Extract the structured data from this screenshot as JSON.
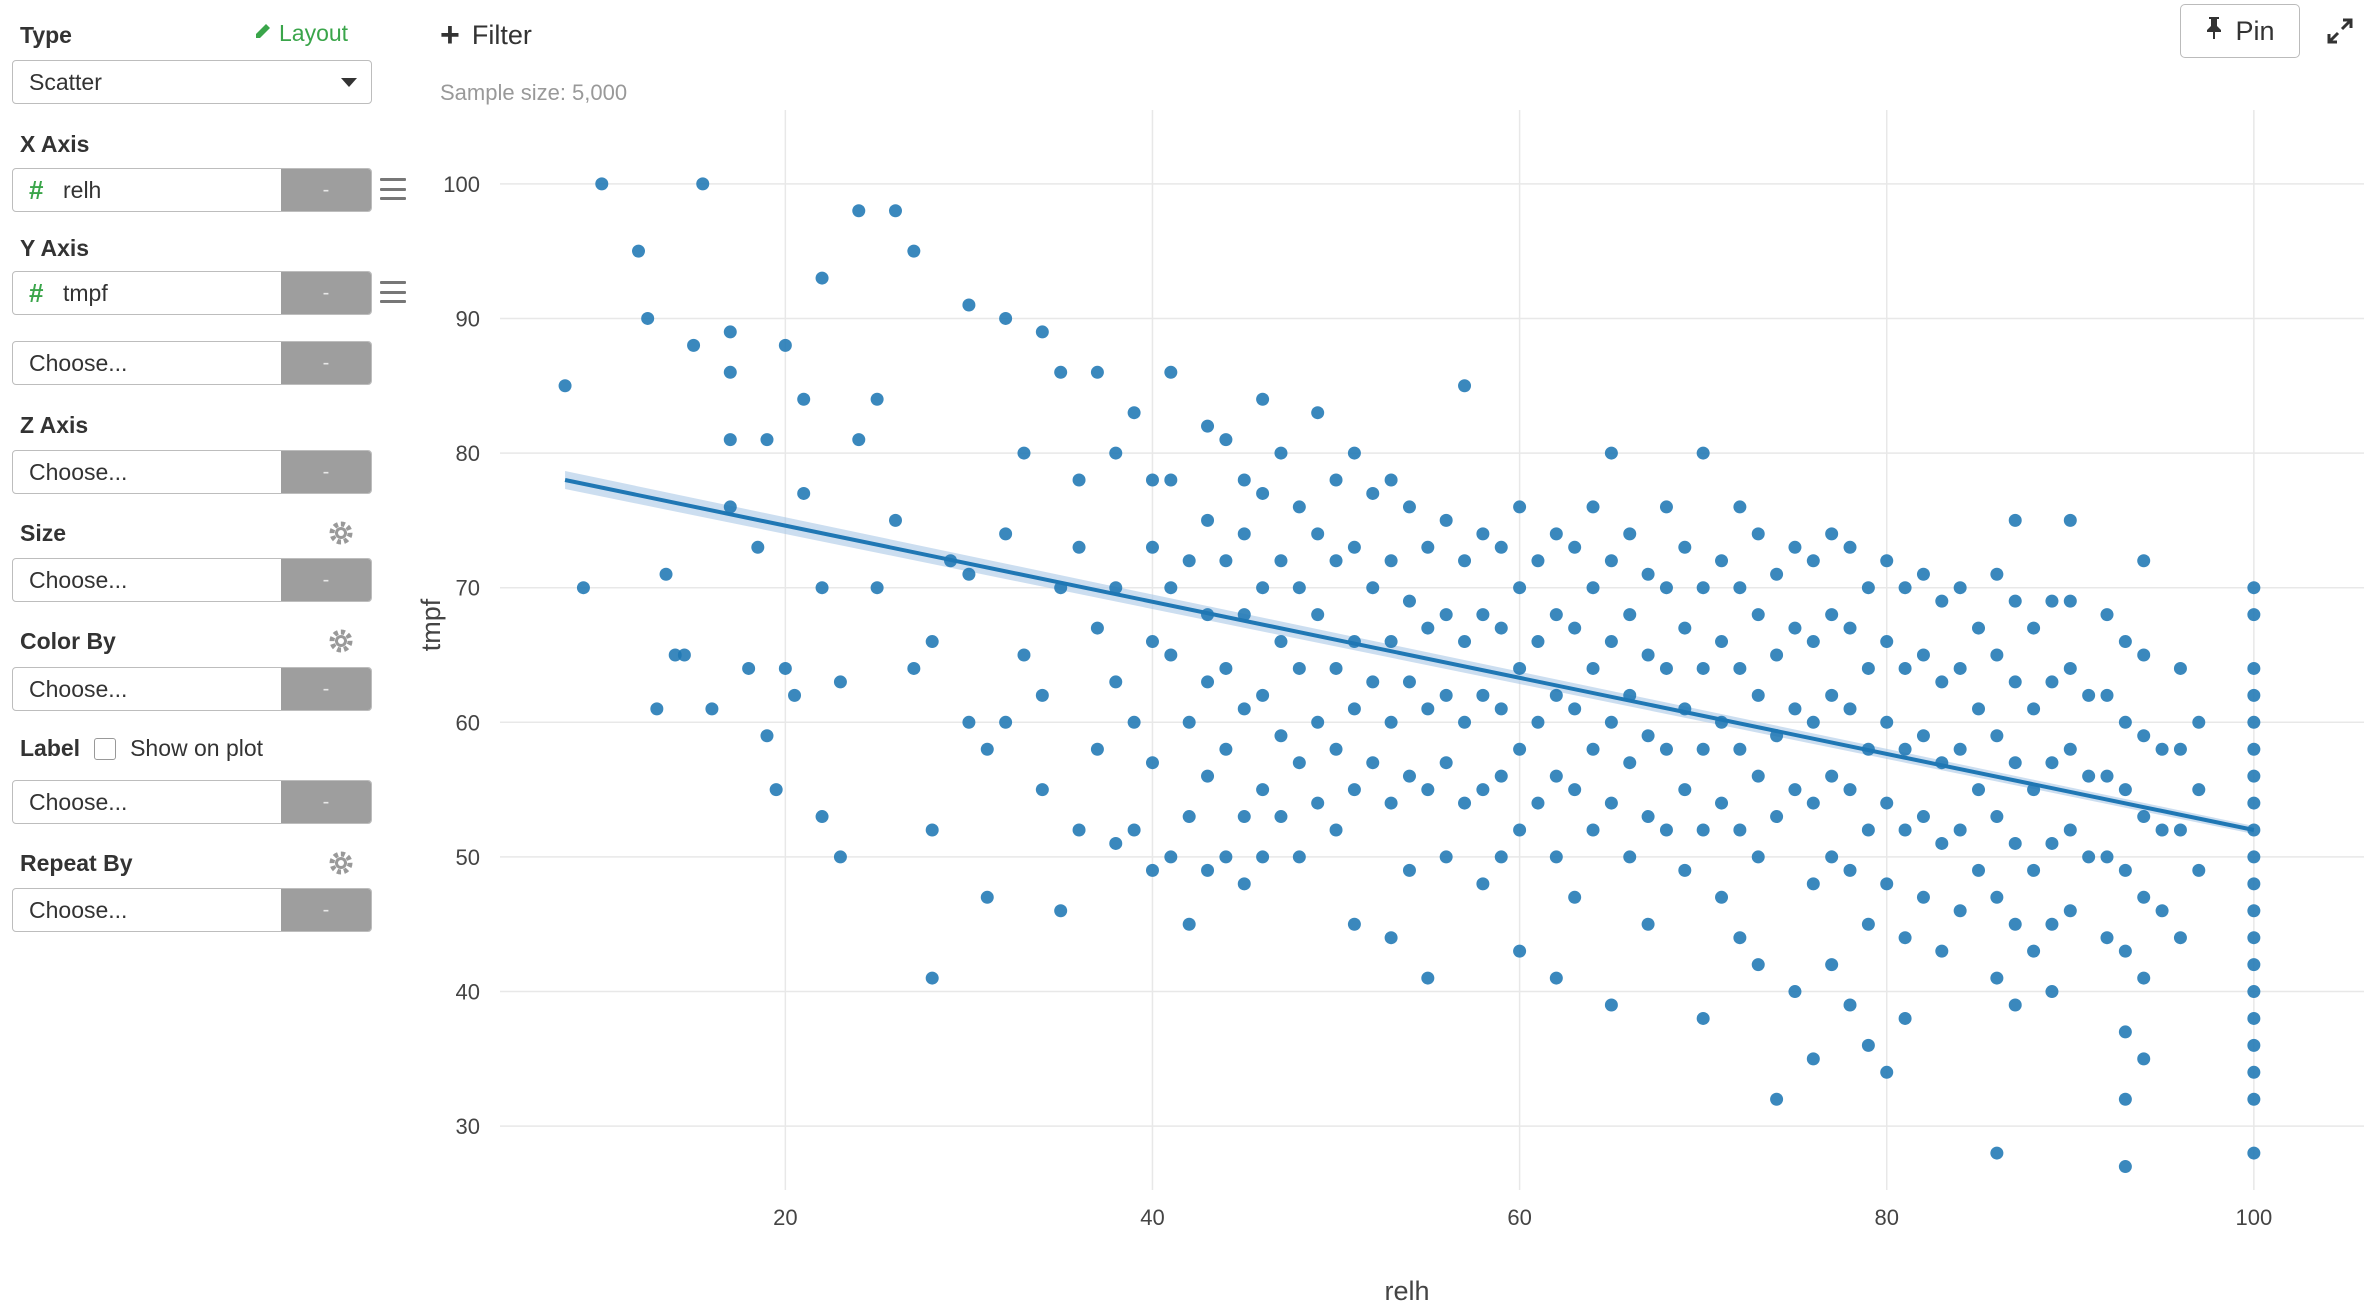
{
  "sidebar": {
    "type_label": "Type",
    "layout_link": "Layout",
    "chart_type_value": "Scatter",
    "x_axis_label": "X Axis",
    "x_axis_value": "relh",
    "y_axis_label": "Y Axis",
    "y_axis_value": "tmpf",
    "y_axis_extra_value": "Choose...",
    "z_axis_label": "Z Axis",
    "z_axis_value": "Choose...",
    "size_label": "Size",
    "size_value": "Choose...",
    "color_by_label": "Color By",
    "color_by_value": "Choose...",
    "label_label": "Label",
    "show_on_plot": "Show on plot",
    "label_value": "Choose...",
    "repeat_by_label": "Repeat By",
    "repeat_by_value": "Choose...",
    "remove_glyph": "-",
    "hash_glyph": "#"
  },
  "toolbar": {
    "filter_label": "Filter",
    "sample_size": "Sample size: 5,000",
    "pin_label": "Pin"
  },
  "colors": {
    "point": "#1f77b4",
    "accent_green": "#3aa54a",
    "grid": "#e8e8e8",
    "button_gray": "#9e9e9e"
  },
  "icons": [
    "pencil-icon",
    "caret-down-icon",
    "hash-icon",
    "menu-icon",
    "gear-icon",
    "plus-icon",
    "pin-icon",
    "expand-icon"
  ],
  "chart_data": {
    "type": "scatter",
    "xlabel": "relh",
    "ylabel": "tmpf",
    "xlim": [
      5,
      106
    ],
    "ylim": [
      26,
      104
    ],
    "xticks": [
      20,
      40,
      60,
      80,
      100
    ],
    "yticks": [
      30,
      40,
      50,
      60,
      70,
      80,
      90,
      100
    ],
    "grid": true,
    "point_color": "#1f77b4",
    "trend_line": {
      "x": [
        8,
        100
      ],
      "y": [
        78,
        52
      ]
    },
    "points": [
      [
        8,
        85
      ],
      [
        9,
        70
      ],
      [
        10,
        100
      ],
      [
        12,
        95
      ],
      [
        12.5,
        90
      ],
      [
        13,
        61
      ],
      [
        13.5,
        71
      ],
      [
        14,
        65
      ],
      [
        14.5,
        65
      ],
      [
        15,
        88
      ],
      [
        15.5,
        100
      ],
      [
        16,
        61
      ],
      [
        17,
        89
      ],
      [
        17,
        86
      ],
      [
        17,
        81
      ],
      [
        17,
        76
      ],
      [
        18,
        64
      ],
      [
        18.5,
        73
      ],
      [
        19,
        59
      ],
      [
        19,
        81
      ],
      [
        19.5,
        55
      ],
      [
        20,
        88
      ],
      [
        20,
        64
      ],
      [
        20.5,
        62
      ],
      [
        21,
        84
      ],
      [
        21,
        77
      ],
      [
        22,
        70
      ],
      [
        22,
        93
      ],
      [
        22,
        53
      ],
      [
        23,
        63
      ],
      [
        23,
        50
      ],
      [
        24,
        98
      ],
      [
        24,
        81
      ],
      [
        25,
        84
      ],
      [
        25,
        70
      ],
      [
        26,
        98
      ],
      [
        26,
        75
      ],
      [
        27,
        64
      ],
      [
        27,
        95
      ],
      [
        28,
        66
      ],
      [
        28,
        41
      ],
      [
        28,
        52
      ],
      [
        29,
        72
      ],
      [
        30,
        71
      ],
      [
        30,
        60
      ],
      [
        30,
        91
      ],
      [
        31,
        58
      ],
      [
        31,
        47
      ],
      [
        32,
        74
      ],
      [
        32,
        60
      ],
      [
        32,
        90
      ],
      [
        33,
        65
      ],
      [
        33,
        80
      ],
      [
        34,
        55
      ],
      [
        34,
        62
      ],
      [
        34,
        89
      ],
      [
        35,
        70
      ],
      [
        35,
        86
      ],
      [
        35,
        46
      ],
      [
        36,
        78
      ],
      [
        36,
        73
      ],
      [
        36,
        52
      ],
      [
        37,
        86
      ],
      [
        37,
        67
      ],
      [
        37,
        58
      ],
      [
        38,
        80
      ],
      [
        38,
        70
      ],
      [
        38,
        63
      ],
      [
        38,
        51
      ],
      [
        39,
        83
      ],
      [
        39,
        60
      ],
      [
        39,
        52
      ],
      [
        40,
        78
      ],
      [
        40,
        73
      ],
      [
        40,
        66
      ],
      [
        40,
        57
      ],
      [
        40,
        49
      ],
      [
        41,
        86
      ],
      [
        41,
        78
      ],
      [
        41,
        70
      ],
      [
        41,
        65
      ],
      [
        41,
        50
      ],
      [
        42,
        72
      ],
      [
        42,
        60
      ],
      [
        42,
        53
      ],
      [
        42,
        45
      ],
      [
        43,
        82
      ],
      [
        43,
        75
      ],
      [
        43,
        68
      ],
      [
        43,
        63
      ],
      [
        43,
        56
      ],
      [
        43,
        49
      ],
      [
        44,
        81
      ],
      [
        44,
        72
      ],
      [
        44,
        64
      ],
      [
        44,
        58
      ],
      [
        44,
        50
      ],
      [
        45,
        78
      ],
      [
        45,
        74
      ],
      [
        45,
        68
      ],
      [
        45,
        61
      ],
      [
        45,
        53
      ],
      [
        45,
        48
      ],
      [
        46,
        84
      ],
      [
        46,
        77
      ],
      [
        46,
        70
      ],
      [
        46,
        62
      ],
      [
        46,
        55
      ],
      [
        46,
        50
      ],
      [
        47,
        80
      ],
      [
        47,
        72
      ],
      [
        47,
        66
      ],
      [
        47,
        59
      ],
      [
        47,
        53
      ],
      [
        48,
        76
      ],
      [
        48,
        70
      ],
      [
        48,
        64
      ],
      [
        48,
        57
      ],
      [
        48,
        50
      ],
      [
        49,
        83
      ],
      [
        49,
        74
      ],
      [
        49,
        68
      ],
      [
        49,
        60
      ],
      [
        49,
        54
      ],
      [
        50,
        78
      ],
      [
        50,
        72
      ],
      [
        50,
        64
      ],
      [
        50,
        58
      ],
      [
        50,
        52
      ],
      [
        51,
        80
      ],
      [
        51,
        73
      ],
      [
        51,
        66
      ],
      [
        51,
        61
      ],
      [
        51,
        55
      ],
      [
        51,
        45
      ],
      [
        52,
        77
      ],
      [
        52,
        70
      ],
      [
        52,
        63
      ],
      [
        52,
        57
      ],
      [
        53,
        78
      ],
      [
        53,
        72
      ],
      [
        53,
        66
      ],
      [
        53,
        60
      ],
      [
        53,
        54
      ],
      [
        53,
        44
      ],
      [
        54,
        76
      ],
      [
        54,
        69
      ],
      [
        54,
        63
      ],
      [
        54,
        56
      ],
      [
        54,
        49
      ],
      [
        55,
        73
      ],
      [
        55,
        67
      ],
      [
        55,
        61
      ],
      [
        55,
        55
      ],
      [
        55,
        41
      ],
      [
        56,
        75
      ],
      [
        56,
        68
      ],
      [
        56,
        62
      ],
      [
        56,
        57
      ],
      [
        56,
        50
      ],
      [
        57,
        72
      ],
      [
        57,
        66
      ],
      [
        57,
        60
      ],
      [
        57,
        54
      ],
      [
        57,
        85
      ],
      [
        58,
        74
      ],
      [
        58,
        68
      ],
      [
        58,
        62
      ],
      [
        58,
        55
      ],
      [
        58,
        48
      ],
      [
        59,
        73
      ],
      [
        59,
        67
      ],
      [
        59,
        61
      ],
      [
        59,
        56
      ],
      [
        59,
        50
      ],
      [
        60,
        76
      ],
      [
        60,
        70
      ],
      [
        60,
        64
      ],
      [
        60,
        58
      ],
      [
        60,
        52
      ],
      [
        60,
        43
      ],
      [
        61,
        72
      ],
      [
        61,
        66
      ],
      [
        61,
        60
      ],
      [
        61,
        54
      ],
      [
        62,
        74
      ],
      [
        62,
        68
      ],
      [
        62,
        62
      ],
      [
        62,
        56
      ],
      [
        62,
        50
      ],
      [
        62,
        41
      ],
      [
        63,
        73
      ],
      [
        63,
        67
      ],
      [
        63,
        61
      ],
      [
        63,
        55
      ],
      [
        63,
        47
      ],
      [
        64,
        76
      ],
      [
        64,
        70
      ],
      [
        64,
        64
      ],
      [
        64,
        58
      ],
      [
        64,
        52
      ],
      [
        65,
        80
      ],
      [
        65,
        72
      ],
      [
        65,
        66
      ],
      [
        65,
        60
      ],
      [
        65,
        54
      ],
      [
        65,
        39
      ],
      [
        66,
        74
      ],
      [
        66,
        68
      ],
      [
        66,
        62
      ],
      [
        66,
        57
      ],
      [
        66,
        50
      ],
      [
        67,
        71
      ],
      [
        67,
        65
      ],
      [
        67,
        59
      ],
      [
        67,
        53
      ],
      [
        67,
        45
      ],
      [
        68,
        76
      ],
      [
        68,
        70
      ],
      [
        68,
        64
      ],
      [
        68,
        58
      ],
      [
        68,
        52
      ],
      [
        69,
        73
      ],
      [
        69,
        67
      ],
      [
        69,
        61
      ],
      [
        69,
        55
      ],
      [
        69,
        49
      ],
      [
        70,
        80
      ],
      [
        70,
        70
      ],
      [
        70,
        64
      ],
      [
        70,
        58
      ],
      [
        70,
        52
      ],
      [
        70,
        38
      ],
      [
        71,
        72
      ],
      [
        71,
        66
      ],
      [
        71,
        60
      ],
      [
        71,
        54
      ],
      [
        71,
        47
      ],
      [
        72,
        76
      ],
      [
        72,
        70
      ],
      [
        72,
        64
      ],
      [
        72,
        58
      ],
      [
        72,
        52
      ],
      [
        72,
        44
      ],
      [
        73,
        74
      ],
      [
        73,
        68
      ],
      [
        73,
        62
      ],
      [
        73,
        56
      ],
      [
        73,
        50
      ],
      [
        73,
        42
      ],
      [
        74,
        71
      ],
      [
        74,
        65
      ],
      [
        74,
        59
      ],
      [
        74,
        53
      ],
      [
        74,
        32
      ],
      [
        75,
        73
      ],
      [
        75,
        67
      ],
      [
        75,
        61
      ],
      [
        75,
        55
      ],
      [
        75,
        40
      ],
      [
        76,
        72
      ],
      [
        76,
        66
      ],
      [
        76,
        60
      ],
      [
        76,
        54
      ],
      [
        76,
        48
      ],
      [
        76,
        35
      ],
      [
        77,
        74
      ],
      [
        77,
        68
      ],
      [
        77,
        62
      ],
      [
        77,
        56
      ],
      [
        77,
        50
      ],
      [
        77,
        42
      ],
      [
        78,
        73
      ],
      [
        78,
        67
      ],
      [
        78,
        61
      ],
      [
        78,
        55
      ],
      [
        78,
        49
      ],
      [
        78,
        39
      ],
      [
        79,
        70
      ],
      [
        79,
        64
      ],
      [
        79,
        58
      ],
      [
        79,
        52
      ],
      [
        79,
        45
      ],
      [
        79,
        36
      ],
      [
        80,
        72
      ],
      [
        80,
        66
      ],
      [
        80,
        60
      ],
      [
        80,
        54
      ],
      [
        80,
        48
      ],
      [
        80,
        34
      ],
      [
        81,
        70
      ],
      [
        81,
        64
      ],
      [
        81,
        58
      ],
      [
        81,
        52
      ],
      [
        81,
        44
      ],
      [
        81,
        38
      ],
      [
        82,
        71
      ],
      [
        82,
        65
      ],
      [
        82,
        59
      ],
      [
        82,
        53
      ],
      [
        82,
        47
      ],
      [
        83,
        69
      ],
      [
        83,
        63
      ],
      [
        83,
        57
      ],
      [
        83,
        51
      ],
      [
        83,
        43
      ],
      [
        84,
        70
      ],
      [
        84,
        64
      ],
      [
        84,
        58
      ],
      [
        84,
        52
      ],
      [
        84,
        46
      ],
      [
        85,
        67
      ],
      [
        85,
        61
      ],
      [
        85,
        55
      ],
      [
        85,
        49
      ],
      [
        86,
        71
      ],
      [
        86,
        65
      ],
      [
        86,
        59
      ],
      [
        86,
        53
      ],
      [
        86,
        47
      ],
      [
        86,
        41
      ],
      [
        86,
        28
      ],
      [
        87,
        75
      ],
      [
        87,
        69
      ],
      [
        87,
        63
      ],
      [
        87,
        57
      ],
      [
        87,
        51
      ],
      [
        87,
        45
      ],
      [
        87,
        39
      ],
      [
        88,
        67
      ],
      [
        88,
        61
      ],
      [
        88,
        55
      ],
      [
        88,
        49
      ],
      [
        88,
        43
      ],
      [
        89,
        69
      ],
      [
        89,
        63
      ],
      [
        89,
        57
      ],
      [
        89,
        51
      ],
      [
        89,
        45
      ],
      [
        89,
        40
      ],
      [
        90,
        75
      ],
      [
        90,
        69
      ],
      [
        90,
        64
      ],
      [
        90,
        58
      ],
      [
        90,
        52
      ],
      [
        90,
        46
      ],
      [
        91,
        62
      ],
      [
        91,
        56
      ],
      [
        91,
        50
      ],
      [
        92,
        68
      ],
      [
        92,
        62
      ],
      [
        92,
        56
      ],
      [
        92,
        50
      ],
      [
        92,
        44
      ],
      [
        93,
        66
      ],
      [
        93,
        60
      ],
      [
        93,
        55
      ],
      [
        93,
        49
      ],
      [
        93,
        43
      ],
      [
        93,
        37
      ],
      [
        93,
        27
      ],
      [
        93,
        32
      ],
      [
        94,
        65
      ],
      [
        94,
        59
      ],
      [
        94,
        53
      ],
      [
        94,
        47
      ],
      [
        94,
        41
      ],
      [
        94,
        35
      ],
      [
        94,
        72
      ],
      [
        95,
        58
      ],
      [
        95,
        52
      ],
      [
        95,
        46
      ],
      [
        96,
        64
      ],
      [
        96,
        58
      ],
      [
        96,
        52
      ],
      [
        96,
        44
      ],
      [
        97,
        60
      ],
      [
        97,
        55
      ],
      [
        97,
        49
      ],
      [
        100,
        70
      ],
      [
        100,
        68
      ],
      [
        100,
        64
      ],
      [
        100,
        62
      ],
      [
        100,
        60
      ],
      [
        100,
        58
      ],
      [
        100,
        56
      ],
      [
        100,
        54
      ],
      [
        100,
        52
      ],
      [
        100,
        50
      ],
      [
        100,
        48
      ],
      [
        100,
        46
      ],
      [
        100,
        44
      ],
      [
        100,
        42
      ],
      [
        100,
        40
      ],
      [
        100,
        38
      ],
      [
        100,
        36
      ],
      [
        100,
        34
      ],
      [
        100,
        32
      ],
      [
        100,
        28
      ]
    ]
  }
}
